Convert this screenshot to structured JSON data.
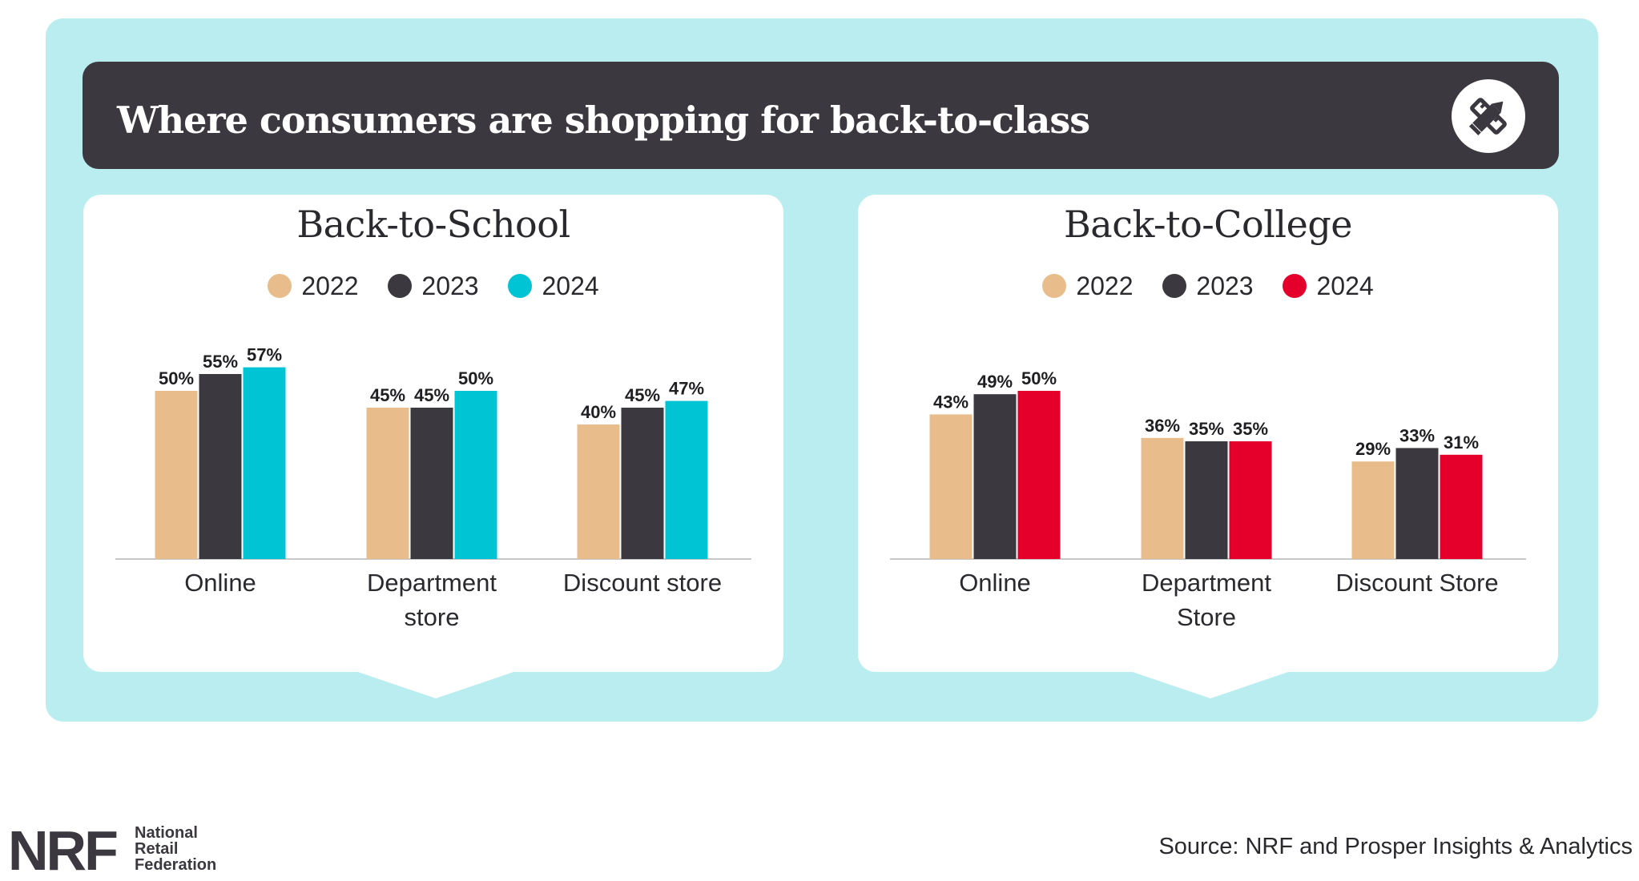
{
  "header": {
    "title": "Where consumers are shopping for back-to-class",
    "icon": "pencil-ruler-icon"
  },
  "colors": {
    "c2022": "#e8bd8b",
    "c2023": "#3b393f",
    "school2024": "#00c4d4",
    "college2024": "#e5002b"
  },
  "chart_data": [
    {
      "type": "bar",
      "title": "Back-to-School",
      "categories": [
        [
          "Online"
        ],
        [
          "Department",
          "store"
        ],
        [
          "Discount store"
        ]
      ],
      "series": [
        {
          "name": "2022",
          "values": [
            50,
            45,
            40
          ]
        },
        {
          "name": "2023",
          "values": [
            55,
            45,
            45
          ]
        },
        {
          "name": "2024",
          "values": [
            57,
            50,
            47
          ]
        }
      ],
      "ylim": [
        0,
        100
      ],
      "unit": "%",
      "legend": "top-center",
      "grid": false
    },
    {
      "type": "bar",
      "title": "Back-to-College",
      "categories": [
        [
          "Online"
        ],
        [
          "Department",
          "Store"
        ],
        [
          "Discount Store"
        ]
      ],
      "series": [
        {
          "name": "2022",
          "values": [
            43,
            36,
            29
          ]
        },
        {
          "name": "2023",
          "values": [
            49,
            35,
            33
          ]
        },
        {
          "name": "2024",
          "values": [
            50,
            35,
            31
          ]
        }
      ],
      "ylim": [
        0,
        100
      ],
      "unit": "%",
      "legend": "top-center",
      "grid": false
    }
  ],
  "footer": {
    "logo_letters": "NRF",
    "logo_name": [
      "National",
      "Retail",
      "Federation"
    ],
    "source": "Source: NRF and Prosper Insights & Analytics"
  }
}
